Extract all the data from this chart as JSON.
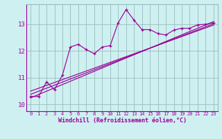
{
  "xlabel": "Windchill (Refroidissement éolien,°C)",
  "xlim": [
    -0.5,
    23.5
  ],
  "ylim": [
    9.75,
    13.75
  ],
  "yticks": [
    10,
    11,
    12,
    13
  ],
  "xticks": [
    0,
    1,
    2,
    3,
    4,
    5,
    6,
    7,
    8,
    9,
    10,
    11,
    12,
    13,
    14,
    15,
    16,
    17,
    18,
    19,
    20,
    21,
    22,
    23
  ],
  "bg_color": "#cff0f0",
  "line_color": "#990099",
  "grid_color": "#99bbbb",
  "curve_x": [
    0,
    1,
    2,
    3,
    4,
    5,
    6,
    7,
    8,
    9,
    10,
    11,
    12,
    13,
    14,
    15,
    16,
    17,
    18,
    19,
    20,
    21,
    22,
    23
  ],
  "curve_y": [
    10.3,
    10.3,
    10.85,
    10.55,
    11.1,
    12.15,
    12.25,
    12.05,
    11.9,
    12.15,
    12.2,
    13.05,
    13.55,
    13.15,
    12.8,
    12.8,
    12.65,
    12.6,
    12.78,
    12.85,
    12.85,
    12.98,
    13.0,
    13.05
  ],
  "reg_line1_x": [
    0,
    23
  ],
  "reg_line1_y": [
    10.25,
    13.1
  ],
  "reg_line2_x": [
    0,
    23
  ],
  "reg_line2_y": [
    10.38,
    13.02
  ],
  "reg_line3_x": [
    0,
    23
  ],
  "reg_line3_y": [
    10.5,
    12.97
  ]
}
